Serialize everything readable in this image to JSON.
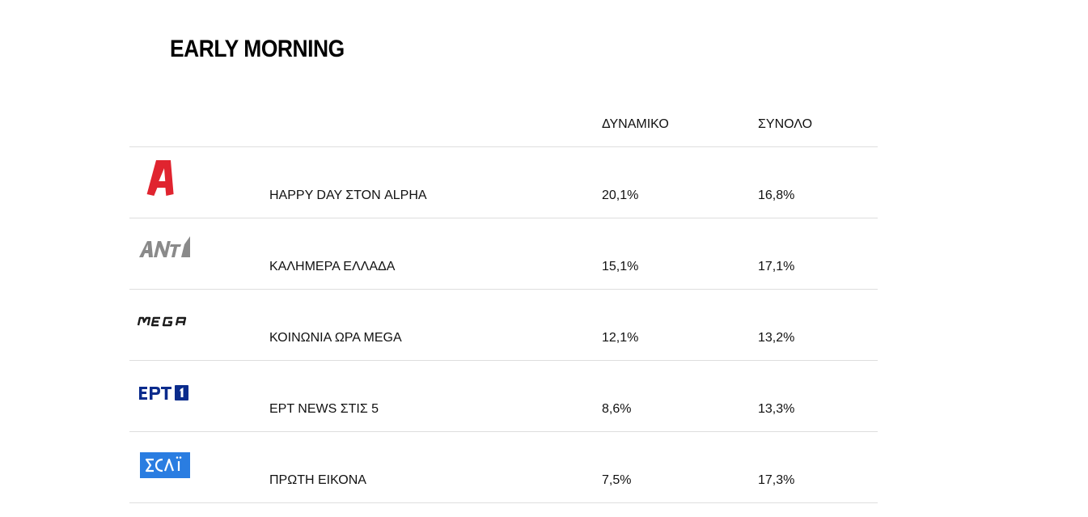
{
  "section": {
    "title": "EARLY MORNING"
  },
  "table": {
    "columns": {
      "channel": "",
      "show": "",
      "dynamic": "ΔΥΝΑΜΙΚΟ",
      "total": "ΣΥΝΟΛΟ"
    },
    "rows": [
      {
        "channel_logo": "alpha-logo-icon",
        "channel_color": "#e0242f",
        "show": "HAPPY DAY ΣΤΟΝ ALPHA",
        "dynamic": "20,1%",
        "total": "16,8%"
      },
      {
        "channel_logo": "ant1-logo-icon",
        "channel_color": "#8a8a8a",
        "show": "ΚΑΛΗΜΕΡΑ ΕΛΛΑΔΑ",
        "dynamic": "15,1%",
        "total": "17,1%"
      },
      {
        "channel_logo": "mega-logo-icon",
        "channel_color": "#1a1a1a",
        "show": "ΚΟΙΝΩΝΙΑ ΩΡΑ MEGA",
        "dynamic": "12,1%",
        "total": "13,2%"
      },
      {
        "channel_logo": "ert1-logo-icon",
        "channel_color": "#0a2b8c",
        "show": "ΕΡΤ NEWS ΣΤΙΣ 5",
        "dynamic": "8,6%",
        "total": "13,3%"
      },
      {
        "channel_logo": "skai-logo-icon",
        "channel_color": "#2a7de1",
        "show": "ΠΡΩΤΗ ΕΙΚΟΝΑ",
        "dynamic": "7,5%",
        "total": "17,3%"
      }
    ]
  }
}
